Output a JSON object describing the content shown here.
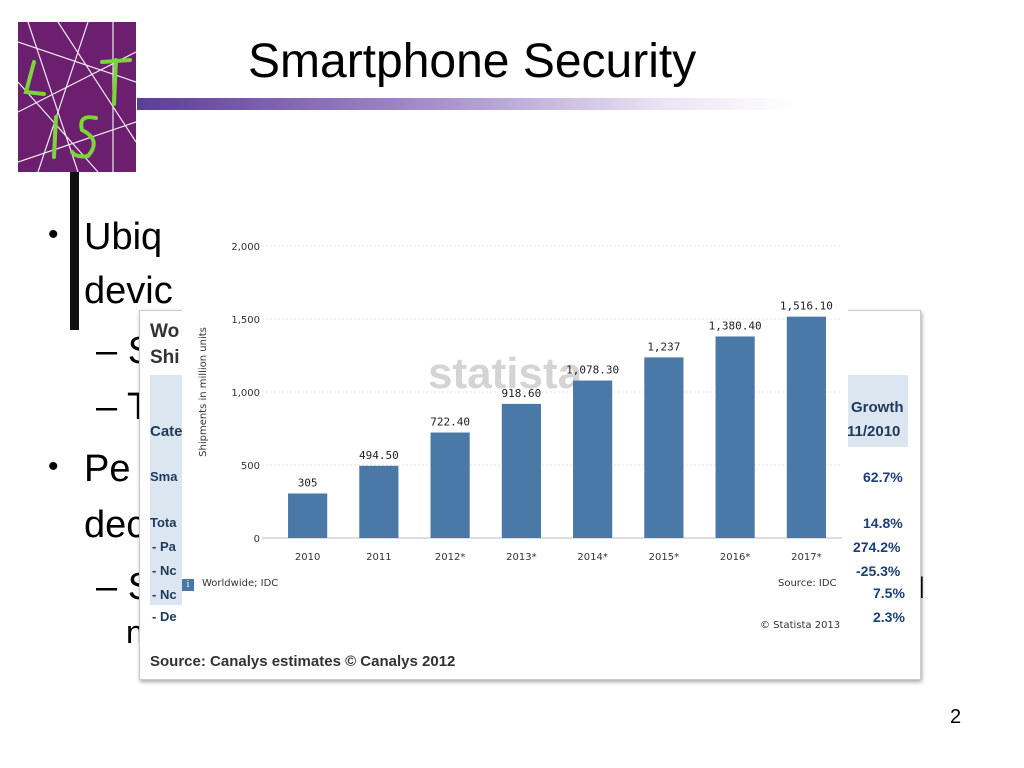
{
  "slide": {
    "title": "Smartphone Security",
    "bullet1_line1": "Ubiq",
    "bullet1_line2": "devic",
    "sub1": "– S",
    "sub2": "– T",
    "bullet2_line1": "Pe",
    "bullet2_line2": "dec",
    "sub3": "– S",
    "sub3_cont": "n",
    "sub3_tail": "l",
    "page_number": "2"
  },
  "canalys_table": {
    "title_line1": "Wo",
    "title_line2": "Shi",
    "col_category": "Cate",
    "col_growth_line1": "Growth",
    "col_growth_line2": "11/2010",
    "row_smartphones": "Sma",
    "row_total": "Tota",
    "row_pa": "- Pa",
    "row_nc": "- Nc",
    "row_nc2": "- Nc",
    "row_de": "- De",
    "growth_values": [
      "62.7%",
      "14.8%",
      "274.2%",
      "-25.3%",
      "7.5%",
      "2.3%"
    ],
    "source": "Source: Canalys estimates © Canalys 2012"
  },
  "chart_data": {
    "type": "bar",
    "categories": [
      "2010",
      "2011",
      "2012*",
      "2013*",
      "2014*",
      "2015*",
      "2016*",
      "2017*"
    ],
    "values": [
      305,
      494.5,
      722.4,
      918.6,
      1078.3,
      1237,
      1380.4,
      1516.1
    ],
    "value_labels": [
      "305",
      "494.50",
      "722.40",
      "918.60",
      "1,078.30",
      "1,237",
      "1,380.40",
      "1,516.10"
    ],
    "ylabel": "Shipments in million units",
    "ylim": [
      0,
      2000
    ],
    "yticks": [
      0,
      500,
      1000,
      1500,
      2000
    ],
    "ytick_labels": [
      "0",
      "500",
      "1,000",
      "1,500",
      "2,000"
    ],
    "grid": true,
    "bar_color": "#4a79a8",
    "watermark": "statista",
    "footnote_left": "Worldwide; IDC",
    "source": "Source: IDC",
    "copyright": "© Statista 2013"
  }
}
